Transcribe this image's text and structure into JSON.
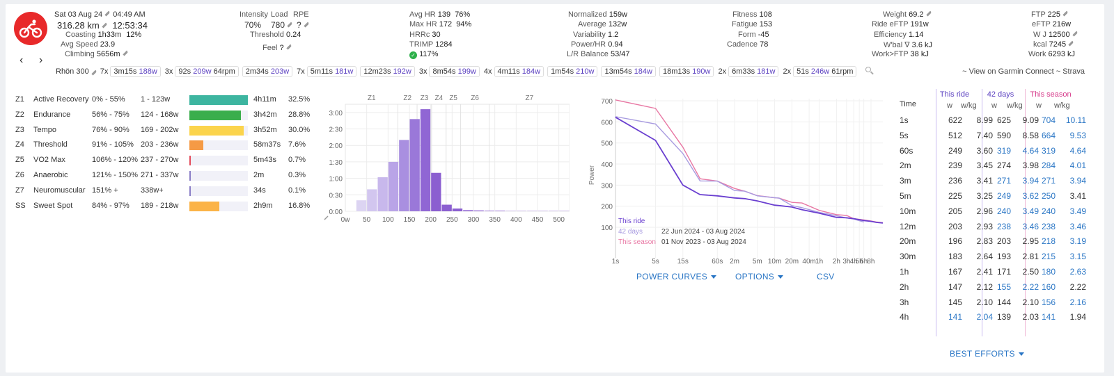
{
  "header": {
    "date": "Sat 03 Aug 24",
    "time": "04:49 AM",
    "distance": "316.28 km",
    "duration": "12:53:34",
    "coasting_label": "Coasting",
    "coasting_value": "1h33m",
    "coasting_pct": "12%",
    "avg_speed_label": "Avg Speed",
    "avg_speed_value": "23.9",
    "climbing_label": "Climbing",
    "climbing_value": "5656m",
    "intensity_label": "Intensity",
    "intensity_value": "70%",
    "load_label": "Load",
    "load_value": "780",
    "rpe_label": "RPE",
    "rpe_value": "?",
    "threshold_label": "Threshold",
    "threshold_value": "0.24",
    "feel_label": "Feel",
    "feel_value": "?",
    "avg_hr_label": "Avg HR",
    "avg_hr_value": "139",
    "avg_hr_pct": "76%",
    "max_hr_label": "Max HR",
    "max_hr_value": "172",
    "max_hr_pct": "94%",
    "hrrc_label": "HRRc",
    "hrrc_value": "30",
    "trimp_label": "TRIMP",
    "trimp_value": "1284",
    "check_value": "117%",
    "normalized_label": "Normalized",
    "normalized_value": "159w",
    "average_label": "Average",
    "average_value": "132w",
    "variability_label": "Variability",
    "variability_value": "1.2",
    "power_hr_label": "Power/HR",
    "power_hr_value": "0.94",
    "lr_label": "L/R Balance",
    "lr_value": "53/47",
    "fitness_label": "Fitness",
    "fitness_value": "108",
    "fatigue_label": "Fatigue",
    "fatigue_value": "153",
    "form_label": "Form",
    "form_value": "-45",
    "cadence_label": "Cadence",
    "cadence_value": "78",
    "weight_label": "Weight",
    "weight_value": "69.2",
    "ride_eftp_label": "Ride eFTP",
    "ride_eftp_value": "191w",
    "efficiency_label": "Efficiency",
    "efficiency_value": "1.14",
    "wbal_label": "W'bal ∇",
    "wbal_value": "3.6 kJ",
    "work_ftp_label": "Work>FTP",
    "work_ftp_value": "38 kJ",
    "ftp_label": "FTP",
    "ftp_value": "225",
    "eftp_label": "eFTP",
    "eftp_value": "216w",
    "wj_label": "W J",
    "wj_value": "12500",
    "kcal_label": "kcal",
    "kcal_value": "7245",
    "work_label": "Work",
    "work_value": "6293 kJ"
  },
  "intervals": {
    "name": "Rhön 300",
    "groups": [
      {
        "count": "7x",
        "chips": [
          {
            "t": "3m15s",
            "w": "188w"
          }
        ]
      },
      {
        "count": "3x",
        "chips": [
          {
            "t": "92s",
            "w": "209w",
            "extra": "64rpm"
          }
        ]
      },
      {
        "count": "",
        "chips": [
          {
            "t": "2m34s",
            "w": "203w"
          }
        ]
      },
      {
        "count": "7x",
        "chips": [
          {
            "t": "5m11s",
            "w": "181w"
          }
        ]
      },
      {
        "count": "",
        "chips": [
          {
            "t": "12m23s",
            "w": "192w"
          }
        ]
      },
      {
        "count": "3x",
        "chips": [
          {
            "t": "8m54s",
            "w": "199w"
          }
        ]
      },
      {
        "count": "4x",
        "chips": [
          {
            "t": "4m11s",
            "w": "184w"
          }
        ]
      },
      {
        "count": "",
        "chips": [
          {
            "t": "1m54s",
            "w": "210w"
          }
        ]
      },
      {
        "count": "",
        "chips": [
          {
            "t": "13m54s",
            "w": "184w"
          }
        ]
      },
      {
        "count": "",
        "chips": [
          {
            "t": "18m13s",
            "w": "190w"
          }
        ]
      },
      {
        "count": "2x",
        "chips": [
          {
            "t": "6m33s",
            "w": "181w"
          }
        ]
      },
      {
        "count": "2x",
        "chips": [
          {
            "t": "51s",
            "w": "246w",
            "extra": "61rpm"
          }
        ]
      }
    ],
    "view_links": "~ View on Garmin Connect ~ Strava"
  },
  "zones": [
    {
      "code": "Z1",
      "name": "Active Recovery",
      "pct": "0% - 55%",
      "watts": "1 - 123w",
      "time": "4h11m",
      "share": "32.5%",
      "fill": 1.0,
      "color": "#3db5a0"
    },
    {
      "code": "Z2",
      "name": "Endurance",
      "pct": "56% - 75%",
      "watts": "124 - 168w",
      "time": "3h42m",
      "share": "28.8%",
      "fill": 0.885,
      "color": "#3aae4c"
    },
    {
      "code": "Z3",
      "name": "Tempo",
      "pct": "76% - 90%",
      "watts": "169 - 202w",
      "time": "3h52m",
      "share": "30.0%",
      "fill": 0.923,
      "color": "#fbd44c"
    },
    {
      "code": "Z4",
      "name": "Threshold",
      "pct": "91% - 105%",
      "watts": "203 - 236w",
      "time": "58m37s",
      "share": "7.6%",
      "fill": 0.234,
      "color": "#f59a45"
    },
    {
      "code": "Z5",
      "name": "VO2 Max",
      "pct": "106% - 120%",
      "watts": "237 - 270w",
      "time": "5m43s",
      "share": "0.7%",
      "fill": 0.022,
      "color": "#e34a5a"
    },
    {
      "code": "Z6",
      "name": "Anaerobic",
      "pct": "121% - 150%",
      "watts": "271 - 337w",
      "time": "2m",
      "share": "0.3%",
      "fill": 0.009,
      "color": "#8a7ec6"
    },
    {
      "code": "Z7",
      "name": "Neuromuscular",
      "pct": "151% +",
      "watts": "338w+",
      "time": "34s",
      "share": "0.1%",
      "fill": 0.003,
      "color": "#8a7ec6"
    },
    {
      "code": "SS",
      "name": "Sweet Spot",
      "pct": "84% - 97%",
      "watts": "189 - 218w",
      "time": "2h9m",
      "share": "16.8%",
      "fill": 0.517,
      "color": "#fbb347"
    }
  ],
  "chart_data": [
    {
      "type": "bar",
      "zone_labels": [
        "Z1",
        "Z2",
        "Z3",
        "Z4",
        "Z5",
        "Z6",
        "Z7"
      ],
      "x_ticks": [
        "0w",
        "50",
        "100",
        "150",
        "200",
        "250",
        "300",
        "350",
        "400",
        "450",
        "500"
      ],
      "y_ticks": [
        "0:00",
        "0:30",
        "1:00",
        "1:30",
        "2:00",
        "2:30",
        "3:00"
      ],
      "bin_width": 25,
      "bins_start": [
        25,
        50,
        75,
        100,
        125,
        150,
        175,
        200,
        225,
        250,
        275,
        300,
        325,
        350,
        375,
        400,
        425,
        450,
        475,
        500
      ],
      "values_minutes": [
        20,
        40,
        62,
        90,
        130,
        168,
        186,
        70,
        12,
        5,
        2,
        1.5,
        1,
        1,
        0.5,
        0.5,
        0.5,
        0.5,
        0.5,
        0.5
      ],
      "xlim": [
        0,
        525
      ],
      "ylim": [
        0,
        195
      ]
    },
    {
      "type": "line",
      "ylabel": "Power",
      "y_ticks": [
        100,
        200,
        300,
        400,
        500,
        600,
        700
      ],
      "ylim": [
        100,
        710
      ],
      "x_ticks": [
        "1s",
        "5s",
        "15s",
        "60s",
        "2m",
        "5m",
        "10m",
        "20m",
        "40m",
        "1h",
        "2h",
        "3h",
        "4h",
        "5h",
        "6h",
        "8h"
      ],
      "series": [
        {
          "name": "This ride",
          "color": "#6a3fd0",
          "points": [
            [
              1,
              622
            ],
            [
              5,
              512
            ],
            [
              15,
              300
            ],
            [
              30,
              255
            ],
            [
              60,
              249
            ],
            [
              120,
              239
            ],
            [
              180,
              236
            ],
            [
              300,
              225
            ],
            [
              600,
              205
            ],
            [
              720,
              203
            ],
            [
              1200,
              196
            ],
            [
              1800,
              183
            ],
            [
              3600,
              167
            ],
            [
              7200,
              147
            ],
            [
              10800,
              145
            ],
            [
              14400,
              141
            ],
            [
              21600,
              132
            ],
            [
              28800,
              128
            ],
            [
              36000,
              123
            ],
            [
              46414,
              120
            ]
          ]
        },
        {
          "name": "42 days",
          "color": "#a89be0",
          "points": [
            [
              1,
              625
            ],
            [
              5,
              590
            ],
            [
              15,
              450
            ],
            [
              30,
              320
            ],
            [
              60,
              319
            ],
            [
              120,
              274
            ],
            [
              180,
              271
            ],
            [
              300,
              249
            ],
            [
              600,
              240
            ],
            [
              720,
              238
            ],
            [
              1200,
              203
            ],
            [
              1800,
              193
            ],
            [
              3600,
              171
            ],
            [
              7200,
              155
            ],
            [
              10800,
              144
            ],
            [
              14400,
              139
            ],
            [
              21600,
              125
            ]
          ]
        },
        {
          "name": "This season",
          "color": "#e878a4",
          "points": [
            [
              1,
              704
            ],
            [
              5,
              664
            ],
            [
              15,
              480
            ],
            [
              30,
              330
            ],
            [
              60,
              319
            ],
            [
              120,
              284
            ],
            [
              180,
              271
            ],
            [
              300,
              250
            ],
            [
              600,
              240
            ],
            [
              720,
              238
            ],
            [
              1200,
              218
            ],
            [
              1800,
              215
            ],
            [
              3600,
              180
            ],
            [
              7200,
              160
            ],
            [
              10800,
              156
            ],
            [
              14400,
              141
            ],
            [
              21600,
              135
            ],
            [
              28800,
              130
            ],
            [
              36000,
              125
            ],
            [
              46414,
              122
            ]
          ]
        }
      ],
      "legend": [
        {
          "name": "This ride",
          "range": ""
        },
        {
          "name": "42 days",
          "range": "22 Jun 2024 - 03 Aug 2024"
        },
        {
          "name": "This season",
          "range": "01 Nov 2023 - 03 Aug 2024"
        }
      ]
    }
  ],
  "chart_buttons": {
    "power_curves": "POWER CURVES",
    "options": "OPTIONS",
    "csv": "CSV"
  },
  "best": {
    "headers": {
      "time": "Time",
      "this_ride": "This ride",
      "days42": "42 days",
      "season": "This season",
      "w": "w",
      "wkg": "w/kg"
    },
    "rows": [
      {
        "t": "1s",
        "a": "622",
        "ak": "8.99",
        "b": "625",
        "bk": "9.09",
        "c": "704",
        "ck": "10.11",
        "bb": 0,
        "cb": 1
      },
      {
        "t": "5s",
        "a": "512",
        "ak": "7.40",
        "b": "590",
        "bk": "8.58",
        "c": "664",
        "ck": "9.53",
        "bb": 0,
        "cb": 1
      },
      {
        "t": "60s",
        "a": "249",
        "ak": "3.60",
        "b": "319",
        "bk": "4.64",
        "c": "319",
        "ck": "4.64",
        "bb": 1,
        "cb": 1
      },
      {
        "t": "2m",
        "a": "239",
        "ak": "3.45",
        "b": "274",
        "bk": "3.98",
        "c": "284",
        "ck": "4.01",
        "bb": 0,
        "cb": 1
      },
      {
        "t": "3m",
        "a": "236",
        "ak": "3.41",
        "b": "271",
        "bk": "3.94",
        "c": "271",
        "ck": "3.94",
        "bb": 1,
        "cb": 1
      },
      {
        "t": "5m",
        "a": "225",
        "ak": "3.25",
        "b": "249",
        "bk": "3.62",
        "c": "250",
        "ck": "3.41",
        "bb": 1,
        "cb": 2
      },
      {
        "t": "10m",
        "a": "205",
        "ak": "2.96",
        "b": "240",
        "bk": "3.49",
        "c": "240",
        "ck": "3.49",
        "bb": 1,
        "cb": 1
      },
      {
        "t": "12m",
        "a": "203",
        "ak": "2.93",
        "b": "238",
        "bk": "3.46",
        "c": "238",
        "ck": "3.46",
        "bb": 1,
        "cb": 1
      },
      {
        "t": "20m",
        "a": "196",
        "ak": "2.83",
        "b": "203",
        "bk": "2.95",
        "c": "218",
        "ck": "3.19",
        "bb": 0,
        "cb": 1
      },
      {
        "t": "30m",
        "a": "183",
        "ak": "2.64",
        "b": "193",
        "bk": "2.81",
        "c": "215",
        "ck": "3.15",
        "bb": 0,
        "cb": 1
      },
      {
        "t": "1h",
        "a": "167",
        "ak": "2.41",
        "b": "171",
        "bk": "2.50",
        "c": "180",
        "ck": "2.63",
        "bb": 0,
        "cb": 1
      },
      {
        "t": "2h",
        "a": "147",
        "ak": "2.12",
        "b": "155",
        "bk": "2.22",
        "c": "160",
        "ck": "2.22",
        "bb": 3,
        "cb": 2
      },
      {
        "t": "3h",
        "a": "145",
        "ak": "2.10",
        "b": "144",
        "bk": "2.10",
        "c": "156",
        "ck": "2.16",
        "bb": 0,
        "cb": 1
      },
      {
        "t": "4h",
        "a": "141",
        "ak": "2.04",
        "ab": 1,
        "b": "139",
        "bk": "2.03",
        "c": "141",
        "ck": "1.94",
        "bb": 0,
        "cb": 2
      }
    ],
    "button": "BEST EFFORTS"
  }
}
